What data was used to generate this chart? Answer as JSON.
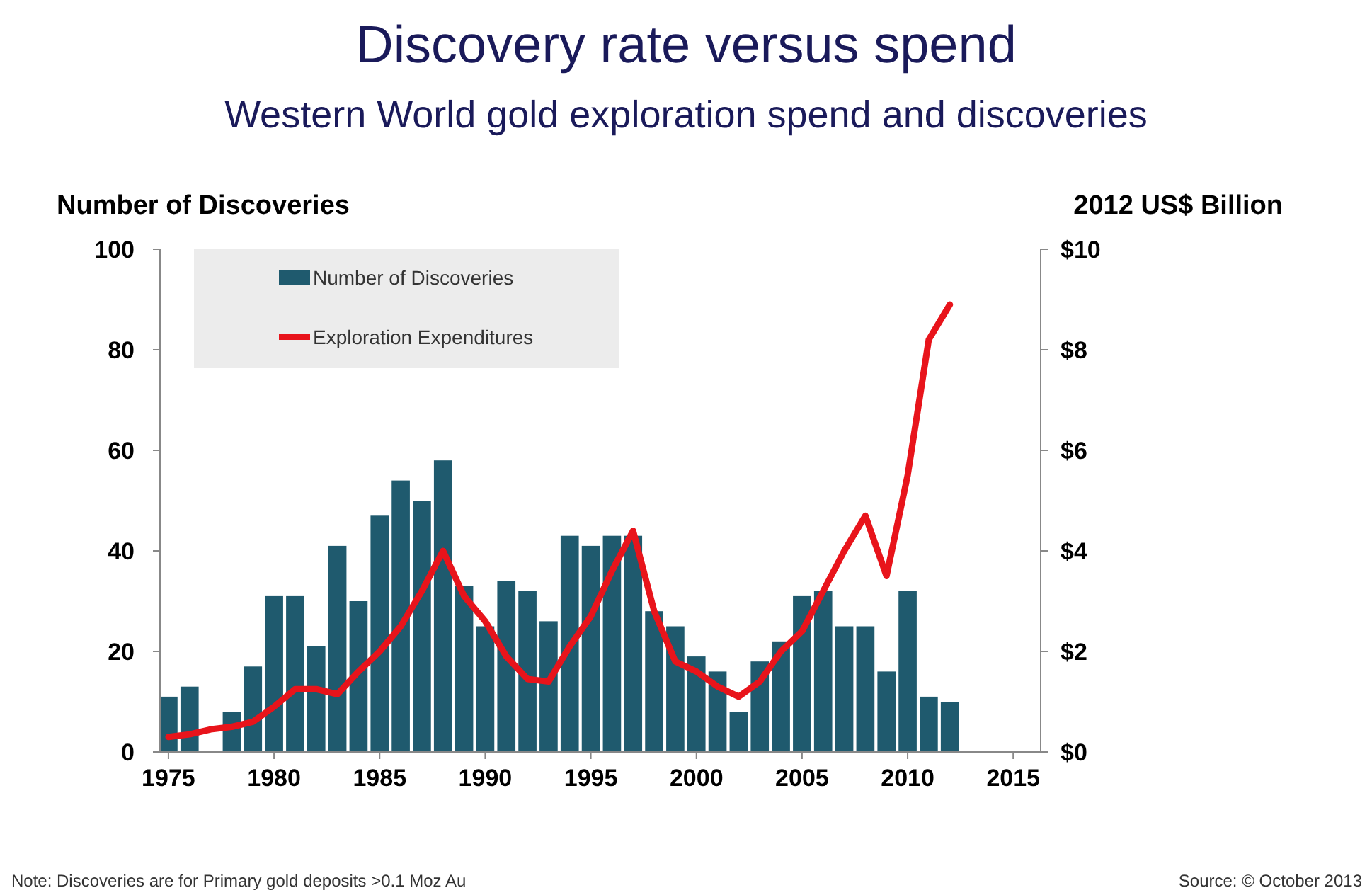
{
  "chart_data": {
    "type": "bar",
    "title": "Discovery rate versus spend",
    "subtitle": "Western World gold exploration spend and discoveries",
    "ylabel": "Number of Discoveries",
    "y2label": "2012 US$ Billion",
    "x": [
      1975,
      1976,
      1977,
      1978,
      1979,
      1980,
      1981,
      1982,
      1983,
      1984,
      1985,
      1986,
      1987,
      1988,
      1989,
      1990,
      1991,
      1992,
      1993,
      1994,
      1995,
      1996,
      1997,
      1998,
      1999,
      2000,
      2001,
      2002,
      2003,
      2004,
      2005,
      2006,
      2007,
      2008,
      2009,
      2010,
      2011,
      2012
    ],
    "series": [
      {
        "name": "Number of Discoveries",
        "color": "#1f5a6e",
        "values": [
          11,
          13,
          null,
          8,
          17,
          31,
          31,
          21,
          41,
          30,
          47,
          54,
          50,
          58,
          33,
          25,
          34,
          32,
          26,
          43,
          41,
          43,
          43,
          28,
          25,
          19,
          16,
          8,
          18,
          22,
          31,
          32,
          25,
          25,
          16,
          32,
          11,
          10
        ]
      },
      {
        "name": "Exploration Expenditures",
        "type": "line",
        "axis": "y2",
        "color": "#e8141b",
        "values": [
          0.3,
          0.35,
          0.45,
          0.5,
          0.6,
          0.9,
          1.25,
          1.25,
          1.15,
          1.6,
          2.0,
          2.5,
          3.2,
          4.0,
          3.1,
          2.6,
          1.9,
          1.45,
          1.4,
          2.1,
          2.7,
          3.6,
          4.4,
          2.8,
          1.8,
          1.6,
          1.3,
          1.1,
          1.4,
          2.0,
          2.4,
          3.2,
          4.0,
          4.7,
          3.5,
          5.5,
          8.2,
          8.9
        ]
      }
    ],
    "xlim": [
      1974.6,
      2016.3
    ],
    "xticks": [
      1975,
      1980,
      1985,
      1990,
      1995,
      2000,
      2005,
      2010,
      2015
    ],
    "ylim": [
      0,
      100
    ],
    "yticks": [
      0,
      20,
      40,
      60,
      80,
      100
    ],
    "y2lim": [
      0,
      10
    ],
    "y2ticks": [
      {
        "value": 0,
        "label": "$0"
      },
      {
        "value": 2,
        "label": "$2"
      },
      {
        "value": 4,
        "label": "$4"
      },
      {
        "value": 6,
        "label": "$6"
      },
      {
        "value": 8,
        "label": "$8"
      },
      {
        "value": 10,
        "label": "$10"
      }
    ],
    "legend": "top left",
    "grid": false,
    "annotations": [
      "Note:  Discoveries are for Primary gold deposits >0.1 Moz Au",
      "Source: © October 2013"
    ]
  }
}
